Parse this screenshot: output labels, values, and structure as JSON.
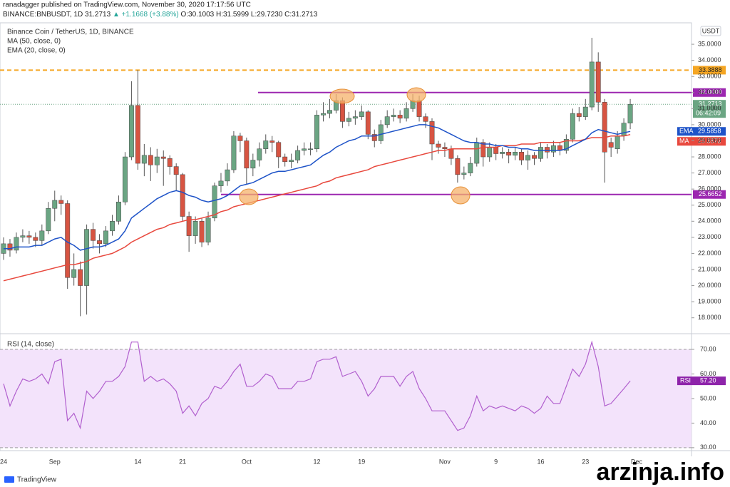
{
  "header": {
    "published": "ranadagger published on TradingView.com, November 30, 2020 17:17:56 UTC",
    "symbol": "BINANCE:BNBUSDT, 1D",
    "last": "31.2713",
    "change": "▲ +1.1668 (+3.88%)",
    "ohlc": "O:30.1003 H:31.5999 L:29.7230 C:31.2713"
  },
  "footer": {
    "brand": "TradingView",
    "watermark": "arzinja.info"
  },
  "chart_data": [
    {
      "type": "candlestick",
      "title": "Binance Coin / TetherUS, 1D, BINANCE",
      "currency": "USDT",
      "countdown": "06:42:09",
      "up_color": "#6ba583",
      "down_color": "#d75442",
      "categories": [
        "24",
        null,
        null,
        null,
        null,
        null,
        null,
        null,
        "Sep",
        null,
        null,
        null,
        null,
        null,
        null,
        null,
        null,
        null,
        null,
        null,
        null,
        "14",
        null,
        null,
        null,
        null,
        null,
        null,
        "21",
        null,
        null,
        null,
        null,
        null,
        null,
        null,
        null,
        null,
        "Oct",
        null,
        null,
        null,
        null,
        null,
        null,
        null,
        null,
        null,
        null,
        "12",
        null,
        null,
        null,
        null,
        null,
        null,
        "19",
        null,
        null,
        null,
        null,
        null,
        null,
        null,
        null,
        null,
        null,
        null,
        null,
        "Nov",
        null,
        null,
        null,
        null,
        null,
        null,
        null,
        "9",
        null,
        null,
        null,
        null,
        null,
        null,
        "16",
        null,
        null,
        null,
        null,
        null,
        null,
        "23",
        null,
        null,
        null,
        null,
        null,
        null,
        null,
        "Dec"
      ],
      "open": [
        22.0,
        22.6,
        22.2,
        23.0,
        23.1,
        23.0,
        22.8,
        23.4,
        24.8,
        25.3,
        25.1,
        20.5,
        21.0,
        20.0,
        23.5,
        22.8,
        22.6,
        23.4,
        24.0,
        25.2,
        28.0,
        31.2,
        27.6,
        28.1,
        27.5,
        28.0,
        27.9,
        27.4,
        26.9,
        24.3,
        23.1,
        24.0,
        22.7,
        24.2,
        26.2,
        26.5,
        27.2,
        29.3,
        29.0,
        27.3,
        27.8,
        28.5,
        29.0,
        28.9,
        28.0,
        27.7,
        27.8,
        28.4,
        28.5,
        28.5,
        30.6,
        30.7,
        30.9,
        31.5,
        30.2,
        30.4,
        30.5,
        30.8,
        29.4,
        29.0,
        30.0,
        30.5,
        30.6,
        30.4,
        31.0,
        31.5,
        30.5,
        30.2,
        28.8,
        28.6,
        28.5,
        27.9,
        26.9,
        27.0,
        27.6,
        28.9,
        28.0,
        28.6,
        28.2,
        28.3,
        28.1,
        28.3,
        27.8,
        28.1,
        27.9,
        28.6,
        28.3,
        28.7,
        28.4,
        29.1,
        30.7,
        30.5,
        31.1,
        33.9,
        31.4,
        28.9,
        28.5,
        29.3,
        30.1003,
        null
      ],
      "high": [
        23.0,
        22.9,
        23.3,
        23.5,
        23.4,
        23.3,
        23.8,
        25.2,
        25.9,
        25.6,
        25.3,
        22.0,
        21.5,
        23.8,
        23.9,
        23.2,
        23.7,
        24.4,
        25.6,
        28.3,
        32.7,
        33.4,
        28.8,
        28.6,
        28.5,
        28.4,
        28.1,
        27.6,
        27.0,
        24.6,
        24.3,
        24.2,
        24.6,
        26.4,
        27.0,
        27.6,
        29.6,
        29.5,
        29.2,
        28.2,
        28.9,
        29.4,
        29.3,
        29.0,
        28.2,
        28.2,
        28.7,
        28.9,
        28.9,
        30.9,
        31.4,
        31.6,
        31.9,
        31.7,
        30.8,
        30.9,
        31.2,
        30.9,
        29.7,
        30.3,
        30.9,
        31.0,
        30.9,
        31.4,
        31.9,
        31.8,
        30.7,
        30.4,
        29.0,
        28.9,
        28.7,
        28.1,
        27.4,
        28.0,
        29.2,
        29.1,
        28.9,
        28.8,
        28.6,
        28.5,
        28.6,
        28.5,
        28.4,
        28.3,
        28.9,
        28.8,
        29.0,
        28.9,
        29.4,
        31.0,
        31.1,
        31.6,
        35.4,
        34.5,
        31.6,
        29.2,
        29.6,
        30.4,
        31.5999,
        null
      ],
      "low": [
        21.6,
        21.8,
        22.0,
        22.7,
        22.6,
        22.4,
        22.5,
        23.2,
        24.0,
        24.4,
        19.8,
        20.0,
        18.1,
        18.2,
        22.3,
        22.0,
        22.4,
        23.1,
        23.8,
        25.0,
        27.8,
        27.2,
        26.8,
        26.5,
        27.0,
        26.2,
        26.9,
        25.9,
        24.0,
        22.1,
        22.6,
        22.4,
        22.5,
        24.0,
        25.8,
        26.2,
        27.0,
        28.3,
        26.3,
        26.8,
        27.4,
        28.2,
        28.3,
        27.3,
        27.4,
        27.3,
        27.6,
        28.1,
        28.1,
        28.3,
        30.2,
        30.4,
        30.7,
        29.8,
        29.9,
        30.0,
        30.3,
        29.1,
        28.6,
        28.8,
        29.8,
        30.2,
        30.1,
        30.2,
        30.8,
        30.2,
        29.8,
        27.8,
        28.2,
        28.0,
        27.5,
        26.4,
        26.6,
        26.8,
        27.4,
        27.4,
        27.7,
        27.8,
        27.9,
        27.6,
        27.8,
        27.5,
        27.2,
        27.5,
        27.7,
        27.9,
        28.0,
        28.1,
        28.2,
        28.9,
        30.2,
        30.3,
        30.9,
        30.8,
        26.4,
        28.0,
        28.2,
        29.0,
        29.723,
        null
      ],
      "close": [
        22.6,
        22.2,
        23.0,
        23.1,
        23.0,
        22.8,
        23.4,
        24.8,
        25.3,
        25.1,
        20.5,
        21.0,
        20.0,
        23.5,
        22.8,
        22.6,
        23.4,
        24.0,
        25.2,
        28.0,
        31.2,
        27.6,
        28.1,
        27.5,
        28.0,
        27.9,
        27.4,
        26.9,
        24.3,
        23.1,
        24.0,
        22.7,
        24.2,
        26.2,
        26.5,
        27.2,
        29.3,
        29.0,
        27.3,
        27.8,
        28.5,
        29.0,
        28.9,
        28.0,
        27.7,
        27.8,
        28.4,
        28.5,
        28.5,
        30.6,
        30.7,
        30.9,
        31.5,
        30.2,
        30.4,
        30.5,
        30.8,
        29.4,
        29.0,
        30.0,
        30.5,
        30.6,
        30.4,
        31.0,
        31.5,
        30.5,
        30.2,
        28.8,
        28.6,
        28.5,
        27.9,
        26.9,
        27.0,
        27.6,
        28.9,
        28.0,
        28.6,
        28.2,
        28.3,
        28.1,
        28.3,
        27.8,
        28.1,
        27.9,
        28.6,
        28.3,
        28.7,
        28.4,
        29.1,
        30.7,
        30.5,
        31.1,
        33.9,
        31.4,
        28.3,
        28.6,
        29.3,
        30.1,
        31.2713,
        null
      ],
      "series": [
        {
          "name": "MA",
          "legend": "MA (50, close, 0)",
          "color": "#e8483d",
          "values": [
            20.3,
            20.4,
            20.5,
            20.6,
            20.7,
            20.8,
            20.9,
            21.0,
            21.1,
            21.2,
            21.3,
            21.3,
            21.4,
            21.5,
            21.7,
            21.8,
            21.9,
            22.0,
            22.2,
            22.4,
            22.7,
            22.9,
            23.1,
            23.3,
            23.5,
            23.6,
            23.8,
            23.9,
            24.0,
            24.1,
            24.1,
            24.2,
            24.3,
            24.4,
            24.6,
            24.7,
            24.9,
            25.0,
            25.1,
            25.2,
            25.3,
            25.4,
            25.5,
            25.6,
            25.7,
            25.8,
            25.9,
            26.0,
            26.1,
            26.2,
            26.4,
            26.5,
            26.7,
            26.8,
            26.9,
            27.0,
            27.1,
            27.2,
            27.4,
            27.5,
            27.6,
            27.7,
            27.8,
            27.9,
            28.0,
            28.1,
            28.2,
            28.3,
            28.4,
            28.4,
            28.5,
            28.5,
            28.5,
            28.5,
            28.5,
            28.6,
            28.6,
            28.6,
            28.7,
            28.7,
            28.7,
            28.8,
            28.8,
            28.8,
            28.9,
            28.9,
            28.9,
            28.9,
            29.0,
            29.0,
            29.0,
            29.1,
            29.2,
            29.2,
            29.2,
            29.3,
            29.3,
            29.3,
            29.3872,
            null
          ]
        },
        {
          "name": "EMA",
          "legend": "EMA (20, close, 0)",
          "color": "#1e53c8",
          "values": [
            22.3,
            22.3,
            22.4,
            22.4,
            22.4,
            22.5,
            22.5,
            22.7,
            22.9,
            23.0,
            22.7,
            22.5,
            22.2,
            22.3,
            22.4,
            22.4,
            22.5,
            22.7,
            22.9,
            23.4,
            24.2,
            24.5,
            24.8,
            25.1,
            25.4,
            25.6,
            25.8,
            25.9,
            25.8,
            25.6,
            25.5,
            25.3,
            25.2,
            25.3,
            25.4,
            25.6,
            25.9,
            26.2,
            26.3,
            26.4,
            26.6,
            26.8,
            27.0,
            27.1,
            27.1,
            27.2,
            27.3,
            27.4,
            27.5,
            27.8,
            28.1,
            28.3,
            28.6,
            28.8,
            29.0,
            29.1,
            29.3,
            29.3,
            29.3,
            29.4,
            29.5,
            29.6,
            29.7,
            29.8,
            29.9,
            30.0,
            30.0,
            29.9,
            29.8,
            29.6,
            29.4,
            29.2,
            29.0,
            28.9,
            28.9,
            28.8,
            28.8,
            28.7,
            28.7,
            28.6,
            28.6,
            28.5,
            28.5,
            28.4,
            28.4,
            28.4,
            28.4,
            28.4,
            28.5,
            28.7,
            28.9,
            29.1,
            29.5,
            29.7,
            29.6,
            29.5,
            29.4,
            29.5,
            29.5858,
            null
          ]
        }
      ],
      "levels": [
        {
          "value": 33.3888,
          "color": "#f5a623",
          "text_color": "#222",
          "dashed": true
        },
        {
          "value": 32,
          "label": "32.0000",
          "color": "#9c27b0",
          "text_color": "#fff",
          "dashed": false
        },
        {
          "value": 25.6652,
          "color": "#9c27b0",
          "text_color": "#fff",
          "dashed": false
        }
      ],
      "ylim": [
        17.1,
        36.2
      ],
      "yticks": [
        {
          "value": 18,
          "label": "18.0000"
        },
        {
          "value": 19,
          "label": "19.0000"
        },
        {
          "value": 20,
          "label": "20.0000"
        },
        {
          "value": 21,
          "label": "21.0000"
        },
        {
          "value": 22,
          "label": "22.0000"
        },
        {
          "value": 23,
          "label": "23.0000"
        },
        {
          "value": 24,
          "label": "24.0000"
        },
        {
          "value": 25,
          "label": "25.0000"
        },
        {
          "value": 26,
          "label": "26.0000"
        },
        {
          "value": 27,
          "label": "27.0000"
        },
        {
          "value": 28,
          "label": "28.0000"
        },
        {
          "value": 29,
          "label": "29.0000"
        },
        {
          "value": 30,
          "label": "30.0000"
        },
        {
          "value": 31,
          "label": "31.0000"
        },
        {
          "value": 32,
          "label": "32.0000"
        },
        {
          "value": 33,
          "label": "33.0000"
        },
        {
          "value": 34,
          "label": "34.0000"
        },
        {
          "value": 35,
          "label": "35.0000"
        }
      ],
      "grid": false
    },
    {
      "type": "line",
      "title": "RSI (14, close)",
      "band_color": "#f3e3fb",
      "band": [
        30,
        70
      ],
      "series": [
        {
          "name": "RSI",
          "color": "#b15fce",
          "tag_label": "57.20",
          "values": [
            56,
            47,
            53,
            58,
            57,
            58,
            60,
            56,
            65,
            66,
            41,
            44,
            38,
            53,
            50,
            53,
            57,
            57,
            59,
            63,
            73,
            73,
            57,
            59,
            57,
            58,
            56,
            53,
            44,
            47,
            43,
            48,
            50,
            55,
            54,
            57,
            61,
            64,
            55,
            55,
            57,
            60,
            59,
            54,
            54,
            54,
            57,
            57,
            58,
            65,
            66,
            66,
            67,
            59,
            60,
            61,
            57,
            51,
            54,
            59,
            59,
            59,
            55,
            59,
            61,
            54,
            50,
            45,
            45,
            45,
            41,
            37,
            38,
            43,
            51,
            45,
            47,
            46,
            47,
            46,
            45,
            47,
            46,
            44,
            46,
            51,
            48,
            48,
            55,
            62,
            59,
            64,
            73,
            63,
            47,
            48,
            51,
            54,
            57.2,
            null
          ]
        }
      ],
      "ylim": [
        28.8,
        75.8
      ],
      "yticks": [
        {
          "value": 30,
          "label": "30.00"
        },
        {
          "value": 40,
          "label": "40.00"
        },
        {
          "value": 50,
          "label": "50.00"
        },
        {
          "value": 60,
          "label": "60.00"
        },
        {
          "value": 70,
          "label": "70.00"
        }
      ]
    }
  ]
}
